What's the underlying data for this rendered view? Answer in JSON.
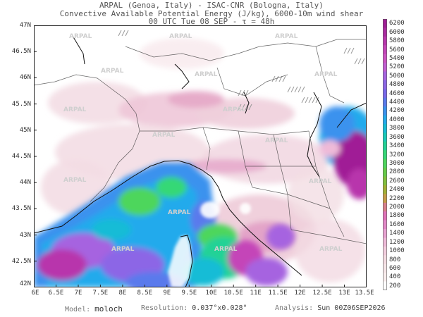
{
  "header": {
    "line1": "ARPAL (Genoa, Italy)  -  ISAC-CNR (Bologna, Italy)",
    "line2": "Convective Available Potential Energy (J/kg), 6000-10m wind shear",
    "line3": "00 UTC Tue 08 SEP  -  τ = 48h"
  },
  "watermark": "ARPAL",
  "map": {
    "lat_labels": [
      "47N",
      "46.5N",
      "46N",
      "45.5N",
      "45N",
      "44.5N",
      "44N",
      "43.5N",
      "43N",
      "42.5N",
      "42N"
    ],
    "lon_labels": [
      "6E",
      "6.5E",
      "7E",
      "7.5E",
      "8E",
      "8.5E",
      "9E",
      "9.5E",
      "10E",
      "10.5E",
      "11E",
      "11.5E",
      "12E",
      "12.5E",
      "13E",
      "13.5E"
    ]
  },
  "colorbar": {
    "labels": [
      "6200",
      "6000",
      "5800",
      "5600",
      "5400",
      "5200",
      "5000",
      "4800",
      "4600",
      "4400",
      "4200",
      "4000",
      "3800",
      "3600",
      "3400",
      "3200",
      "3000",
      "2800",
      "2600",
      "2400",
      "2200",
      "2000",
      "1800",
      "1600",
      "1400",
      "1200",
      "1000",
      "800",
      "600",
      "400",
      "200"
    ],
    "colors": [
      "#a01e96",
      "#aa2aa0",
      "#b836ac",
      "#c444b8",
      "#cc52c2",
      "#c25ed2",
      "#a664e0",
      "#8c66e6",
      "#7868ea",
      "#5a7aec",
      "#3a92ee",
      "#22aaec",
      "#16bcd6",
      "#18cab8",
      "#22d296",
      "#36d876",
      "#4ed65c",
      "#66cc48",
      "#82c03c",
      "#a2b034",
      "#c69c48",
      "#d8808a",
      "#e072b8",
      "#e288c8",
      "#e8a2d2",
      "#eebad8",
      "#f2cede",
      "#f4dce2",
      "#f6e6e8",
      "#f9eeee",
      "#ffffff"
    ]
  },
  "footer": {
    "model_label": "Model:",
    "model_value": "moloch",
    "resolution_label": "Resolution:",
    "resolution_value": "0.037°x0.028°",
    "analysis_label": "Analysis:",
    "analysis_value": "Sun 00Z06SEP2026"
  }
}
